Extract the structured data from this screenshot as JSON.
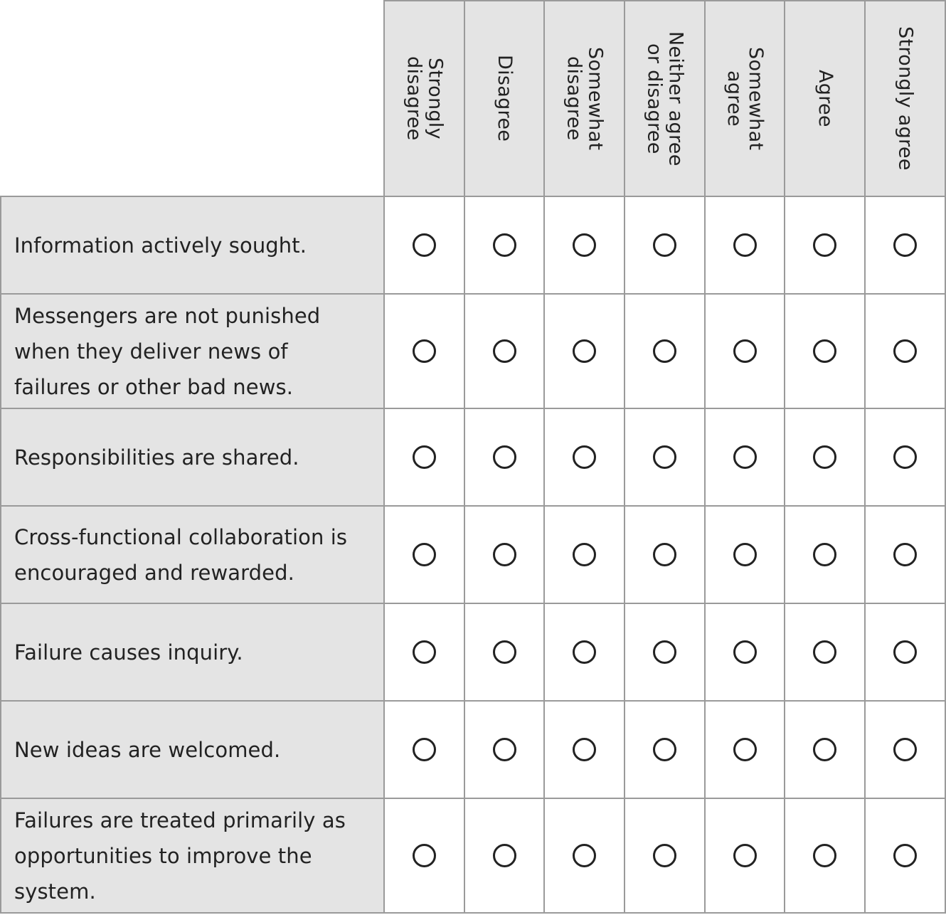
{
  "scale": {
    "options": [
      "Strongly\ndisagree",
      "Disagree",
      "Somewhat\ndisagree",
      "Neither agree\nor disagree",
      "Somewhat\nagree",
      "Agree",
      "Strongly  agree"
    ]
  },
  "statements": [
    "Information actively sought.",
    "Messengers are not punished when they deliver news of failures or other bad news.",
    "Responsibilities are shared.",
    "Cross-functional collaboration is encouraged and rewarded.",
    "Failure causes inquiry.",
    "New ideas are welcomed.",
    "Failures are treated primarily as opportunities to improve the system."
  ],
  "responses": [
    null,
    null,
    null,
    null,
    null,
    null,
    null
  ]
}
